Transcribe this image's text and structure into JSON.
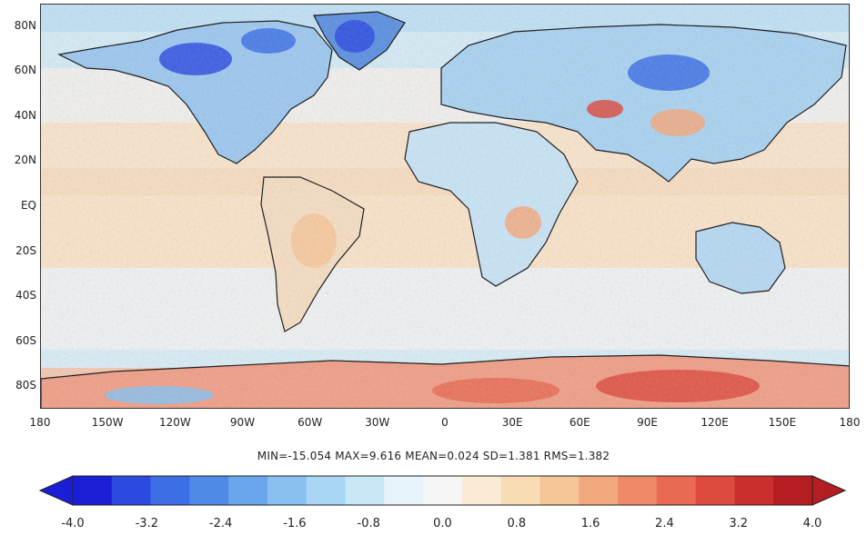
{
  "map": {
    "lat_labels": [
      "80N",
      "60N",
      "40N",
      "20N",
      "EQ",
      "20S",
      "40S",
      "60S",
      "80S"
    ],
    "lon_labels": [
      "180",
      "150W",
      "120W",
      "90W",
      "60W",
      "30W",
      "0",
      "30E",
      "60E",
      "90E",
      "120E",
      "150E",
      "180"
    ],
    "lon_range": [
      -180,
      180
    ],
    "lat_range": [
      -90,
      90
    ],
    "projection": "plate-carree",
    "coastlines": true
  },
  "stats": {
    "text": "MIN=-15.054   MAX=9.616   MEAN=0.024   SD=1.381   RMS=1.382"
  },
  "colorbar": {
    "tick_labels": [
      "-4.0",
      "-3.2",
      "-2.4",
      "-1.6",
      "-0.8",
      "0.0",
      "0.8",
      "1.6",
      "2.4",
      "3.2",
      "4.0"
    ],
    "range": [
      -4.0,
      4.0
    ],
    "extend": "both",
    "colors": [
      "#1a1fd6",
      "#2b4be0",
      "#3c6fe6",
      "#4f8ae8",
      "#6aa6ec",
      "#88c0f0",
      "#a8d6f4",
      "#c9e8f7",
      "#e6f3f8",
      "#f5f5f5",
      "#faecd4",
      "#f8dcb4",
      "#f6c598",
      "#f3a97e",
      "#ef8a66",
      "#e86a52",
      "#dd4a3e",
      "#cc2e2c",
      "#b41d22"
    ]
  }
}
